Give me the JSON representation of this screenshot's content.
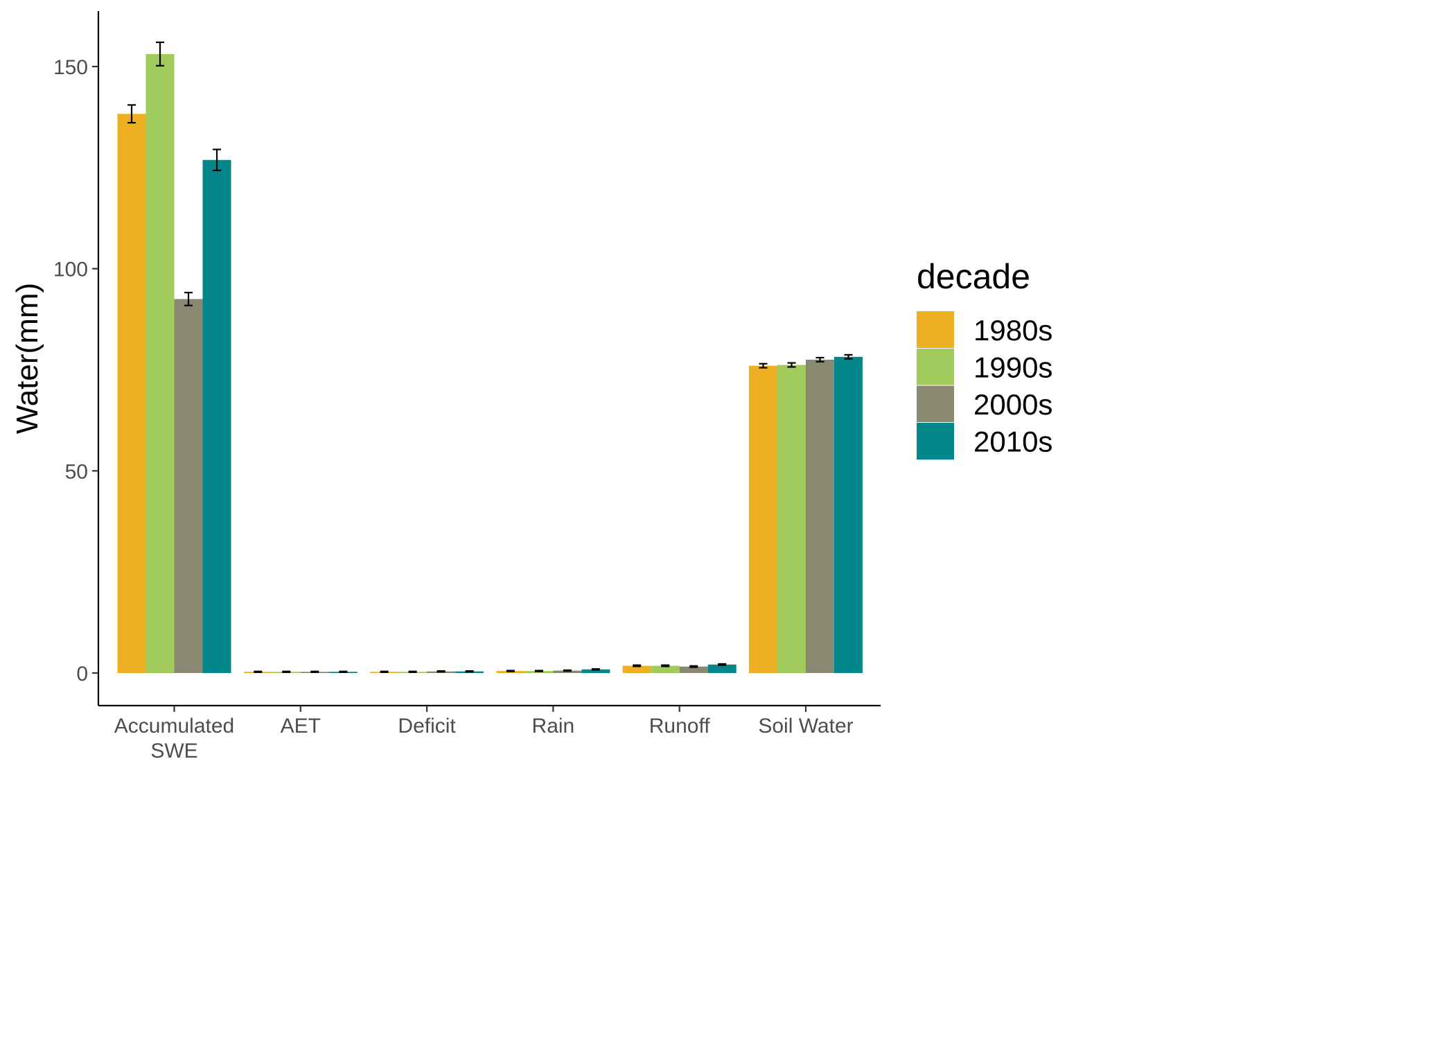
{
  "chart_data": {
    "type": "bar",
    "ylabel": "Water(mm)",
    "xlabel": "",
    "ylim": [
      -7.5,
      164
    ],
    "yticks": [
      0,
      50,
      100,
      150
    ],
    "grid": false,
    "legend": {
      "title": "decade",
      "position": "right"
    },
    "categories": [
      {
        "lines": [
          "Accumulated",
          "SWE"
        ]
      },
      {
        "lines": [
          "AET"
        ]
      },
      {
        "lines": [
          "Deficit"
        ]
      },
      {
        "lines": [
          "Rain"
        ]
      },
      {
        "lines": [
          "Runoff"
        ]
      },
      {
        "lines": [
          "Soil Water"
        ]
      }
    ],
    "series": [
      {
        "name": "1980s",
        "color": "#EDB022",
        "values": [
          138.3,
          0.3,
          0.3,
          0.5,
          1.8,
          76.0
        ],
        "errors": [
          2.2,
          0.1,
          0.1,
          0.1,
          0.15,
          0.5
        ]
      },
      {
        "name": "1990s",
        "color": "#A2CB5E",
        "values": [
          153.1,
          0.3,
          0.3,
          0.5,
          1.8,
          76.2
        ],
        "errors": [
          2.9,
          0.1,
          0.1,
          0.1,
          0.15,
          0.5
        ]
      },
      {
        "name": "2000s",
        "color": "#8A8870",
        "values": [
          92.5,
          0.3,
          0.4,
          0.6,
          1.6,
          77.5
        ],
        "errors": [
          1.6,
          0.1,
          0.1,
          0.1,
          0.15,
          0.5
        ]
      },
      {
        "name": "2010s",
        "color": "#03878A",
        "values": [
          126.9,
          0.3,
          0.4,
          0.9,
          2.1,
          78.2
        ],
        "errors": [
          2.6,
          0.1,
          0.1,
          0.1,
          0.15,
          0.5
        ]
      }
    ]
  }
}
